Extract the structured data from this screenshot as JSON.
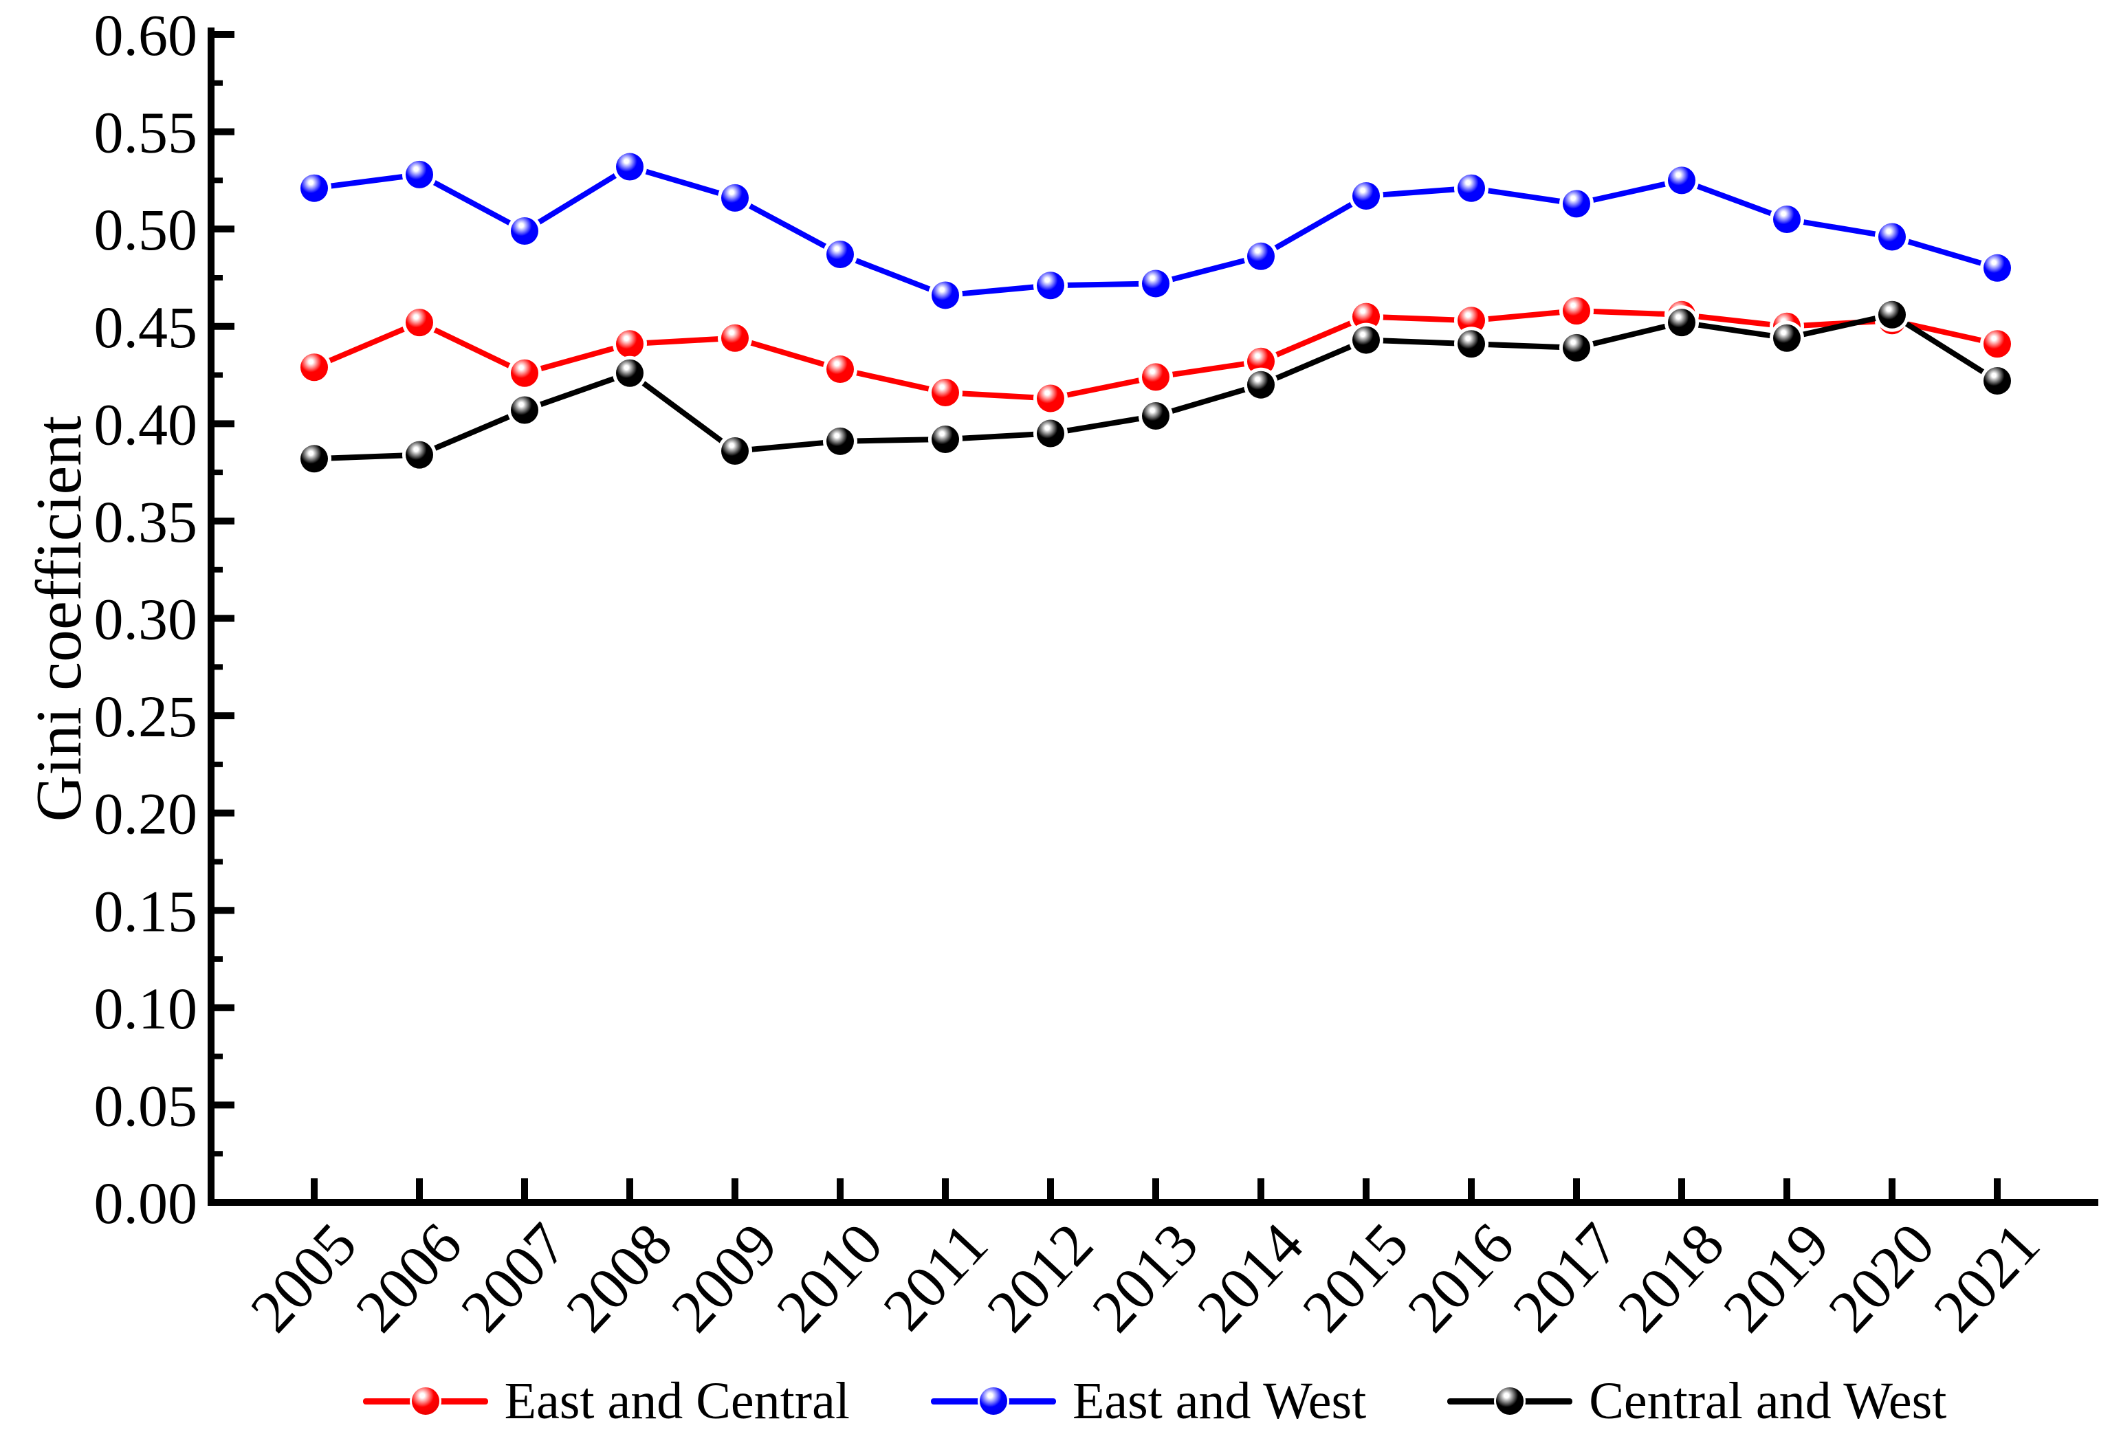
{
  "chart_data": {
    "type": "line",
    "title": "",
    "ylabel": "Gini coefficient",
    "xlabel": "",
    "x": [
      2005,
      2006,
      2007,
      2008,
      2009,
      2010,
      2011,
      2012,
      2013,
      2014,
      2015,
      2016,
      2017,
      2018,
      2019,
      2020,
      2021
    ],
    "series": [
      {
        "name": "East and Central",
        "color": "#ff0000",
        "highlight": "#ffb3b3",
        "dark": "#e00000",
        "values": [
          0.429,
          0.452,
          0.426,
          0.441,
          0.444,
          0.428,
          0.416,
          0.413,
          0.424,
          0.432,
          0.455,
          0.453,
          0.458,
          0.456,
          0.45,
          0.453,
          0.441
        ]
      },
      {
        "name": "East and West",
        "color": "#0000ff",
        "highlight": "#b3b3ff",
        "dark": "#0000e0",
        "values": [
          0.521,
          0.528,
          0.499,
          0.532,
          0.516,
          0.487,
          0.466,
          0.471,
          0.472,
          0.486,
          0.517,
          0.521,
          0.513,
          0.525,
          0.505,
          0.496,
          0.48
        ]
      },
      {
        "name": "Central and West",
        "color": "#000000",
        "highlight": "#b0b0b0",
        "dark": "#000000",
        "values": [
          0.382,
          0.384,
          0.407,
          0.426,
          0.386,
          0.391,
          0.392,
          0.395,
          0.404,
          0.42,
          0.443,
          0.441,
          0.439,
          0.452,
          0.444,
          0.456,
          0.422
        ]
      }
    ],
    "ylim": [
      0.0,
      0.6
    ],
    "y_major_step": 0.05,
    "y_minor_step": 0.025,
    "y_tick_labels": [
      "0.00",
      "0.05",
      "0.10",
      "0.15",
      "0.20",
      "0.25",
      "0.30",
      "0.35",
      "0.40",
      "0.45",
      "0.50",
      "0.55",
      "0.60"
    ],
    "legend_position": "bottom",
    "grid": false,
    "background": "#ffffff"
  }
}
